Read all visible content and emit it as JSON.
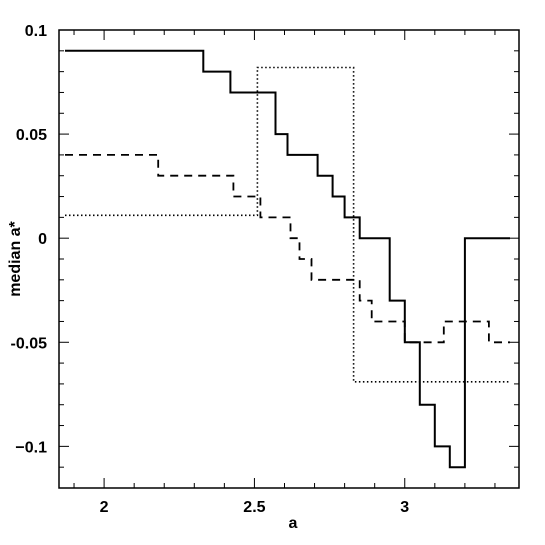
{
  "chart_data": {
    "type": "line",
    "title": "",
    "xlabel": "a",
    "ylabel": "median a*",
    "xlim": [
      1.85,
      3.38
    ],
    "ylim": [
      -0.12,
      0.1
    ],
    "xticks": [
      2,
      2.5,
      3
    ],
    "xtick_labels": [
      "2",
      "2.5",
      "3"
    ],
    "yticks": [
      0.1,
      0.05,
      0,
      -0.05,
      -0.1
    ],
    "ytick_labels": [
      "0.1",
      "0.05",
      "0",
      "-0.05",
      "−0.1"
    ],
    "grid": false,
    "series": [
      {
        "style": "solid",
        "x": [
          1.87,
          2.33,
          2.33,
          2.42,
          2.42,
          2.57,
          2.57,
          2.61,
          2.61,
          2.71,
          2.71,
          2.76,
          2.76,
          2.8,
          2.8,
          2.85,
          2.85,
          2.95,
          2.95,
          3.0,
          3.0,
          3.05,
          3.05,
          3.1,
          3.1,
          3.15,
          3.15,
          3.2,
          3.2,
          3.25,
          3.25,
          3.35
        ],
        "y": [
          0.09,
          0.09,
          0.08,
          0.08,
          0.07,
          0.07,
          0.05,
          0.05,
          0.04,
          0.04,
          0.03,
          0.03,
          0.02,
          0.02,
          0.01,
          0.01,
          0.0,
          0.0,
          -0.03,
          -0.03,
          -0.05,
          -0.05,
          -0.08,
          -0.08,
          -0.1,
          -0.1,
          -0.11,
          -0.11,
          0.0,
          0.0,
          0.0,
          0.0
        ]
      },
      {
        "style": "dashed",
        "x": [
          1.87,
          2.18,
          2.18,
          2.43,
          2.43,
          2.52,
          2.52,
          2.62,
          2.62,
          2.65,
          2.65,
          2.69,
          2.69,
          2.74,
          2.74,
          2.85,
          2.85,
          2.89,
          2.89,
          3.0,
          3.0,
          3.13,
          3.13,
          3.28,
          3.28,
          3.35
        ],
        "y": [
          0.04,
          0.04,
          0.03,
          0.03,
          0.02,
          0.02,
          0.01,
          0.01,
          0.0,
          0.0,
          -0.01,
          -0.01,
          -0.02,
          -0.02,
          -0.02,
          -0.02,
          -0.03,
          -0.03,
          -0.04,
          -0.04,
          -0.05,
          -0.05,
          -0.04,
          -0.04,
          -0.05,
          -0.05
        ]
      },
      {
        "style": "dotted",
        "x": [
          1.87,
          2.51,
          2.51,
          2.83,
          2.83,
          3.35
        ],
        "y": [
          0.011,
          0.011,
          0.082,
          0.082,
          -0.069,
          -0.069
        ]
      }
    ]
  }
}
